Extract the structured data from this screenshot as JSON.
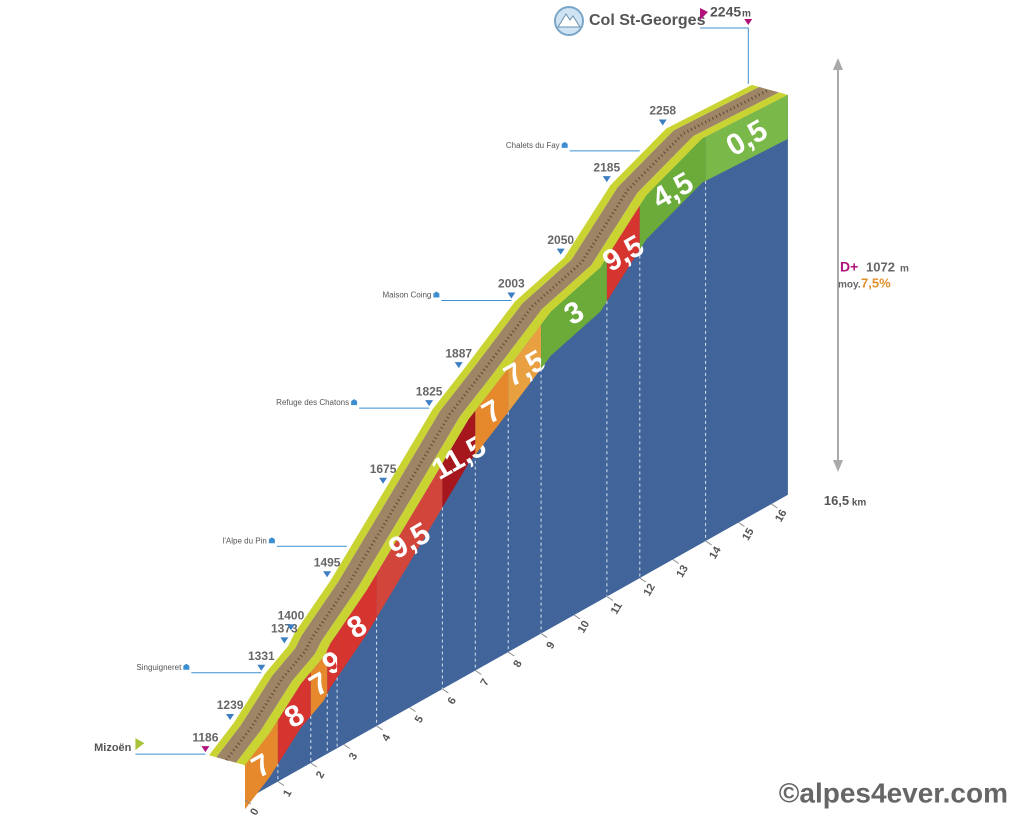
{
  "chart_data": {
    "type": "climb-profile",
    "title": "Col St-Georges",
    "altitude_unit": "m",
    "distance_unit": "km",
    "xlim": [
      0,
      16.5
    ],
    "ylim": [
      1085,
      2260
    ],
    "xticks": [
      0,
      1,
      2,
      3,
      4,
      5,
      6,
      7,
      8,
      9,
      10,
      11,
      12,
      13,
      14,
      15,
      16
    ],
    "distance_total": {
      "value": 16.5,
      "label": "16,5"
    },
    "altitudes": {
      "x": [
        0,
        0.75,
        1.7,
        2.4,
        2.6,
        3.7,
        5.4,
        6.8,
        7.7,
        9.3,
        10.8,
        12.2,
        13.9,
        16.5
      ],
      "values": [
        1186,
        1239,
        1331,
        1373,
        1400,
        1495,
        1675,
        1825,
        1887,
        2003,
        2050,
        2185,
        2258,
        2245
      ]
    },
    "places": {
      "x": [
        0,
        1.7,
        4.3,
        6.8,
        9.3,
        13.2
      ],
      "names": [
        "Mizoën",
        "Singuigneret",
        "l'Alpe du Pin",
        "Refuge des Chatons",
        "Maison Coing",
        "Chalets du Fay"
      ]
    },
    "segments": {
      "bins": [
        0,
        1,
        2,
        2.5,
        2.8,
        4,
        6,
        7,
        8,
        9,
        11,
        12,
        14,
        16.5
      ],
      "values": [
        7,
        8,
        7,
        9,
        8,
        9.5,
        11.5,
        7,
        7.5,
        3,
        9.5,
        4.5,
        0.5
      ],
      "value_labels": [
        "7",
        "8",
        "7",
        "9",
        "8",
        "9,5",
        "11,5",
        "7",
        "7,5",
        "3",
        "9,5",
        "4,5",
        "0,5"
      ],
      "colors": [
        "#e5892c",
        "#d6342f",
        "#e5892c",
        "#d6342f",
        "#d6342f",
        "#d1453a",
        "#a5161d",
        "#e5892c",
        "#e8a040",
        "#6aab3a",
        "#d6342f",
        "#6aab3a",
        "#7bb84a"
      ]
    },
    "elevation_gain_label": "D+",
    "elevation_gain": 1072,
    "average_label": "moy.",
    "average_gradient": {
      "value": 7.5,
      "label": "7,5%"
    },
    "credit": "©alpes4ever.com"
  }
}
